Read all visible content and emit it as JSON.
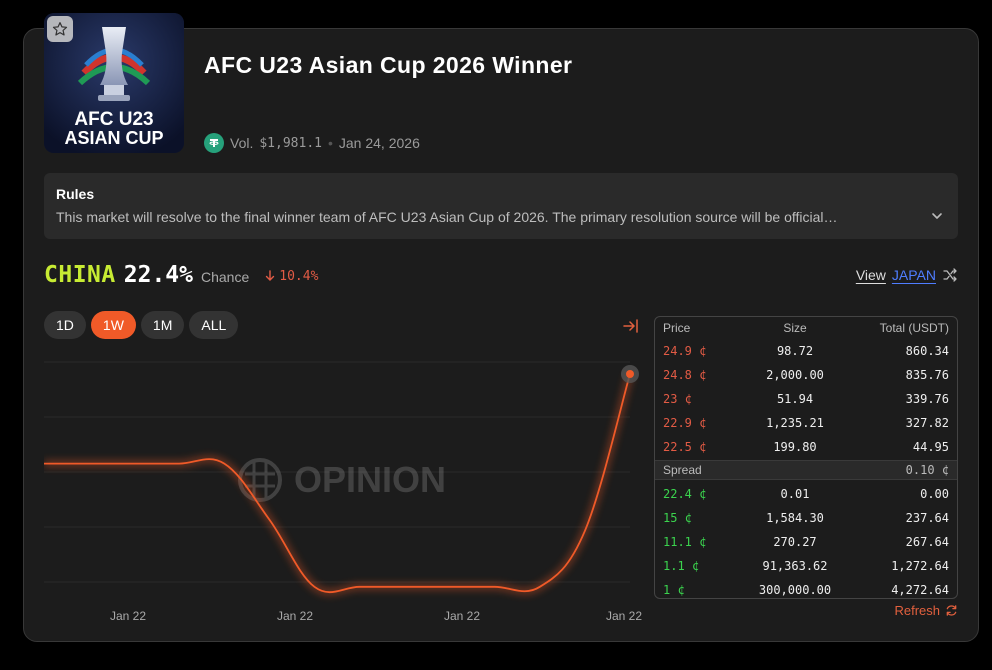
{
  "market": {
    "title": "AFC U23 Asian Cup 2026 Winner",
    "logo_text_line1": "AFC U23",
    "logo_text_line2": "ASIAN CUP",
    "volume_label": "Vol.",
    "volume_value": "$1,981.1",
    "separator": "•",
    "date": "Jan 24, 2026",
    "favorite_icon": "star-icon",
    "currency_icon": "tether-icon"
  },
  "rules": {
    "title": "Rules",
    "text": "This market will resolve to the final winner team of AFC U23 Asian Cup of 2026. The primary resolution source will be official…",
    "expand_icon": "chevron-down-icon"
  },
  "outcome": {
    "name": "CHINA",
    "chance_pct": "22.4%",
    "chance_label": "Chance",
    "change": "10.4%",
    "change_direction": "down",
    "view_label": "View",
    "view_team": "JAPAN",
    "switch_icon": "shuffle-icon"
  },
  "range_tabs": [
    {
      "label": "1D",
      "active": false
    },
    {
      "label": "1W",
      "active": true
    },
    {
      "label": "1M",
      "active": false
    },
    {
      "label": "ALL",
      "active": false
    }
  ],
  "chart_data": {
    "type": "line",
    "watermark": "OPINION",
    "x_tick_labels": [
      "Jan 22",
      "Jan 22",
      "Jan 22",
      "Jan 22"
    ],
    "series": [
      {
        "values": [
          0.6,
          0.6,
          0.6,
          0.6,
          0.6,
          0.35,
          0.05,
          0.05,
          0.05,
          0.05,
          0.05,
          0.05,
          0.3,
          1.0
        ]
      }
    ],
    "line_color": "#f05a28",
    "grid": true
  },
  "orderbook": {
    "headers": [
      "Price",
      "Size",
      "Total (USDT)"
    ],
    "asks": [
      [
        "24.9 ¢",
        "98.72",
        "860.34"
      ],
      [
        "24.8 ¢",
        "2,000.00",
        "835.76"
      ],
      [
        "23 ¢",
        "51.94",
        "339.76"
      ],
      [
        "22.9 ¢",
        "1,235.21",
        "327.82"
      ],
      [
        "22.5 ¢",
        "199.80",
        "44.95"
      ]
    ],
    "spread_label": "Spread",
    "spread_value": "0.10 ¢",
    "bids": [
      [
        "22.4 ¢",
        "0.01",
        "0.00"
      ],
      [
        "15 ¢",
        "1,584.30",
        "237.64"
      ],
      [
        "11.1 ¢",
        "270.27",
        "267.64"
      ],
      [
        "1.1 ¢",
        "91,363.62",
        "1,272.64"
      ],
      [
        "1 ¢",
        "300,000.00",
        "4,272.64"
      ]
    ],
    "refresh_label": "Refresh",
    "refresh_icon": "refresh-icon",
    "ask_color": "#e25b45",
    "bid_color": "#3bd34e"
  }
}
